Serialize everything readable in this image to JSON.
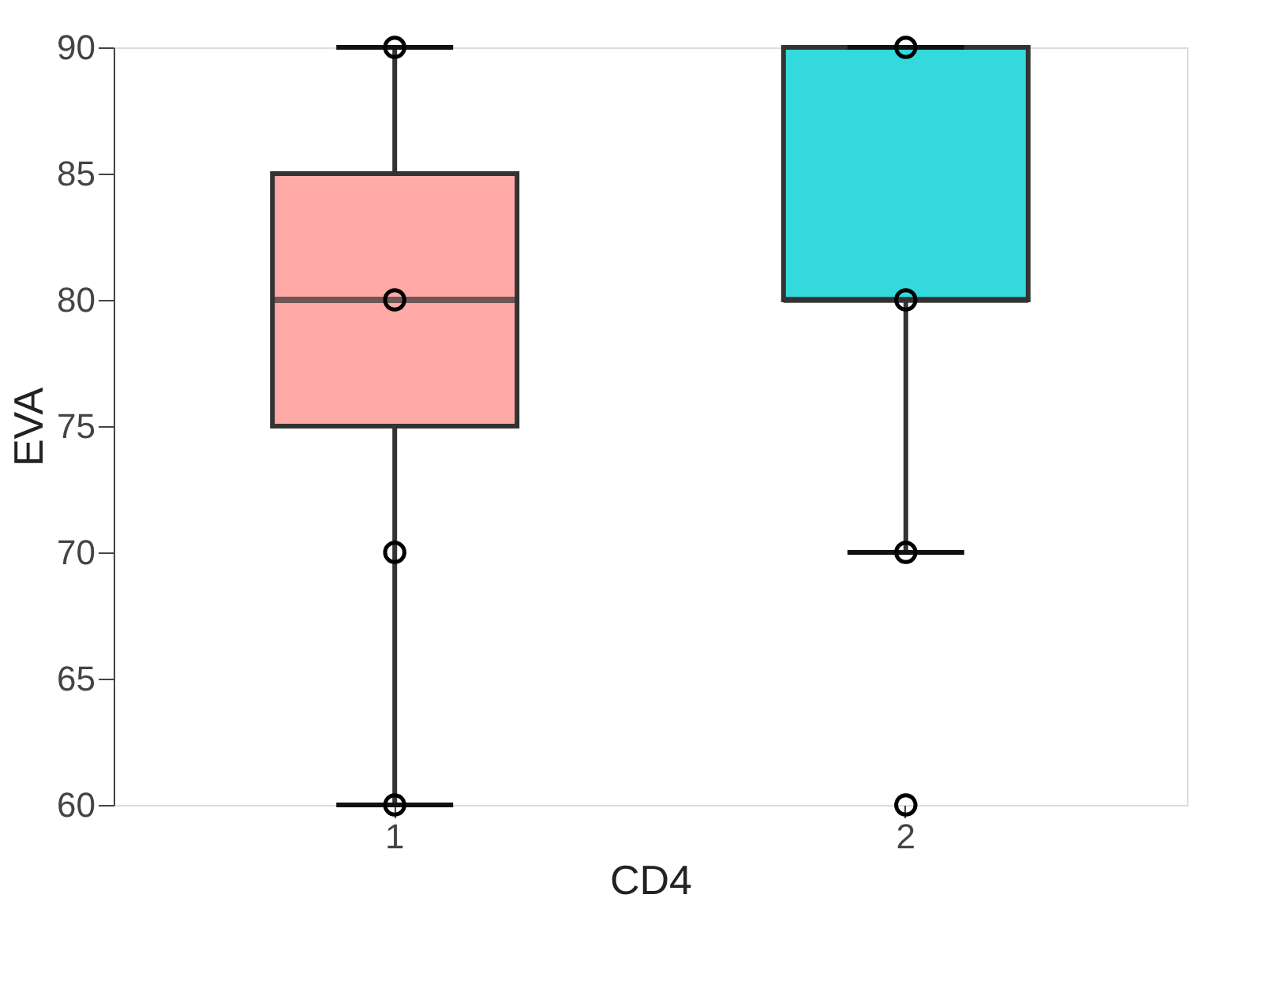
{
  "chart_data": {
    "type": "box",
    "xlabel": "CD4",
    "ylabel": "EVA",
    "categories": [
      "1",
      "2"
    ],
    "series": [
      {
        "type": "box",
        "colors": [
          "#ffaaa7",
          "#33d9dc"
        ],
        "boxes": [
          {
            "low": 60,
            "q1": 75,
            "median": 80,
            "q3": 85,
            "high": 90
          },
          {
            "low": 70,
            "q1": 80,
            "median": 80,
            "q3": 90,
            "high": 90,
            "outliers": [
              60
            ]
          }
        ]
      },
      {
        "type": "scatter",
        "color": "#000000",
        "x": [
          "1",
          "1",
          "1",
          "1",
          "2",
          "2",
          "2"
        ],
        "values": [
          90,
          80,
          70,
          60,
          90,
          80,
          70
        ]
      }
    ],
    "ylim": [
      60,
      90
    ],
    "yticks": [
      60,
      65,
      70,
      75,
      80,
      85,
      90
    ],
    "grid": false,
    "legend": false,
    "marker": "circle"
  }
}
